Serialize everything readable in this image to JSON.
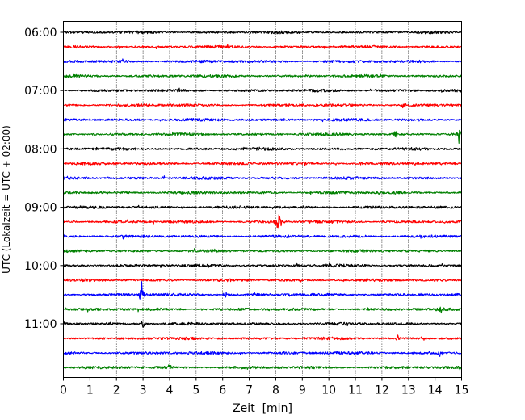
{
  "chart_data": {
    "type": "line",
    "title": "",
    "xlabel": "Zeit  [min]",
    "ylabel": "UTC (Lokalzeit = UTC + 02:00)",
    "xlim": [
      0,
      15
    ],
    "x_ticks": [
      "0",
      "1",
      "2",
      "3",
      "4",
      "5",
      "6",
      "7",
      "8",
      "9",
      "10",
      "11",
      "12",
      "13",
      "14",
      "15"
    ],
    "y_ticks": [
      "06:00",
      "07:00",
      "08:00",
      "09:00",
      "10:00",
      "11:00"
    ],
    "grid": "vertical dotted at each minute",
    "legend": "none",
    "trace_colors": [
      "#000000",
      "#ff0000",
      "#0000ff",
      "#008000"
    ],
    "traces_start": "06:00",
    "trace_interval_min": 15,
    "trace_count": 24,
    "events": [
      {
        "trace": 13,
        "minute": 8.1,
        "amplitude": 0.9
      },
      {
        "trace": 18,
        "minute": 2.95,
        "amplitude": 0.9
      },
      {
        "trace": 18,
        "minute": 6.1,
        "amplitude": 0.3
      },
      {
        "trace": 19,
        "minute": 14.2,
        "amplitude": 0.45
      },
      {
        "trace": 7,
        "minute": 14.9,
        "amplitude": 0.6
      },
      {
        "trace": 7,
        "minute": 12.5,
        "amplitude": 0.35
      },
      {
        "trace": 20,
        "minute": 3.0,
        "amplitude": 0.3
      },
      {
        "trace": 22,
        "minute": 14.2,
        "amplitude": 0.35
      },
      {
        "trace": 21,
        "minute": 12.6,
        "amplitude": 0.25
      },
      {
        "trace": 5,
        "minute": 12.8,
        "amplitude": 0.25
      },
      {
        "trace": 16,
        "minute": 10.0,
        "amplitude": 0.25
      },
      {
        "trace": 8,
        "minute": 7.4,
        "amplitude": 0.25
      },
      {
        "trace": 2,
        "minute": 2.2,
        "amplitude": 0.2
      },
      {
        "trace": 23,
        "minute": 4.0,
        "amplitude": 0.2
      }
    ]
  }
}
